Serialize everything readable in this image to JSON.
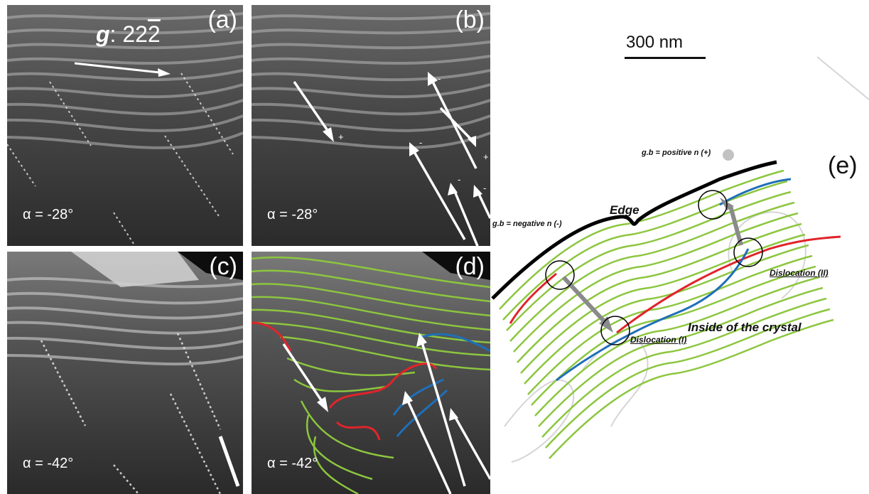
{
  "panels": {
    "a": {
      "label": "(a)",
      "alpha": "α = -28°",
      "g_prefix": "g",
      "g_rest": ": 22",
      "g_bar_digit": "2"
    },
    "b": {
      "label": "(b)",
      "alpha": "α = -28°",
      "signs": [
        "-",
        "+",
        "-",
        "+",
        "-",
        "-"
      ]
    },
    "c": {
      "label": "(c)",
      "alpha": "α = -42°"
    },
    "d": {
      "label": "(d)",
      "alpha": "α = -42°"
    }
  },
  "scale_bar": {
    "label": "300 nm"
  },
  "schematic": {
    "label": "(e)",
    "positive": "g.b = positive n (+)",
    "negative": "g.b = negative n (-)",
    "edge": "Edge",
    "inside": "Inside of the crystal",
    "dislocation_1": "Dislocation (I)",
    "dislocation_2": "Dislocation (II)"
  },
  "colors": {
    "fringe_green": "#8cc63f",
    "dislocation_red": "#e0242a",
    "dislocation_blue": "#1f6fb8",
    "arrow_gray": "#8a8a8a"
  }
}
